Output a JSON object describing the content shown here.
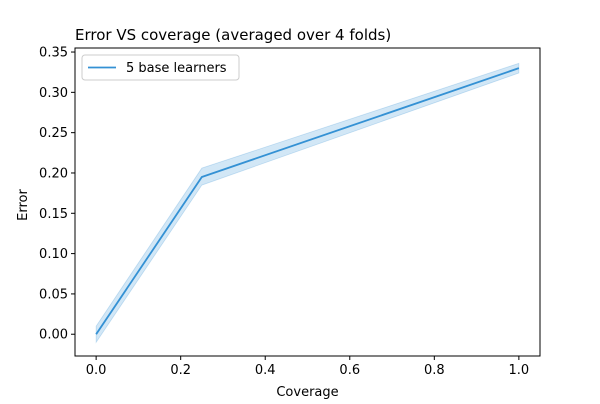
{
  "chart_data": {
    "type": "line",
    "title": "Error VS coverage (averaged over 4 folds)",
    "xlabel": "Coverage",
    "ylabel": "Error",
    "xlim": [
      -0.05,
      1.05
    ],
    "ylim": [
      -0.027,
      0.355
    ],
    "xticks": [
      0.0,
      0.2,
      0.4,
      0.6,
      0.8,
      1.0
    ],
    "xtick_labels": [
      "0.0",
      "0.2",
      "0.4",
      "0.6",
      "0.8",
      "1.0"
    ],
    "yticks": [
      0.0,
      0.05,
      0.1,
      0.15,
      0.2,
      0.25,
      0.3,
      0.35
    ],
    "ytick_labels": [
      "0.00",
      "0.05",
      "0.10",
      "0.15",
      "0.20",
      "0.25",
      "0.30",
      "0.35"
    ],
    "grid": false,
    "legend_position": "top-left",
    "series": [
      {
        "name": "5 base learners",
        "color": "#3491d4",
        "band_color": "#3491d4",
        "x": [
          0.0,
          0.25,
          1.0
        ],
        "y": [
          0.0,
          0.195,
          0.33
        ],
        "lower": [
          -0.01,
          0.185,
          0.324
        ],
        "upper": [
          0.01,
          0.206,
          0.336
        ]
      }
    ]
  }
}
